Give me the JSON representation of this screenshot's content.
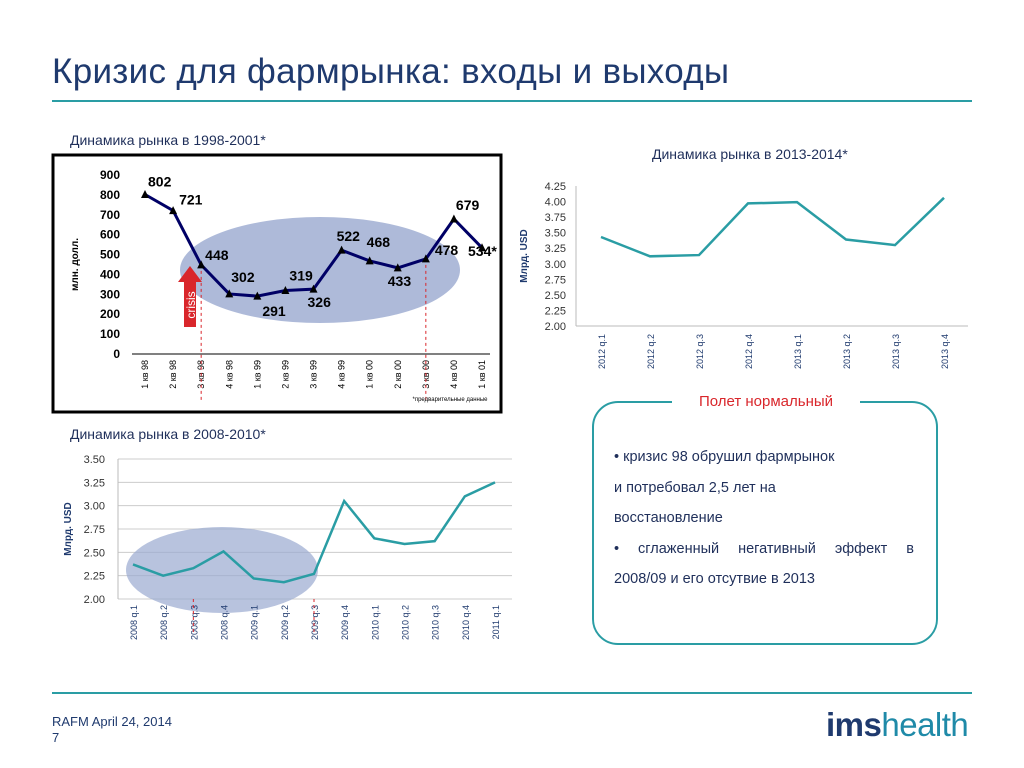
{
  "slide": {
    "title": "Кризис для фармрынка: входы и выходы",
    "footer_line1": "RAFM April 24, 2014",
    "footer_line2": "7",
    "logo_bold": "ims",
    "logo_light": "health"
  },
  "colors": {
    "accent": "#2a9da4",
    "navy": "#000066",
    "red": "#d9262b",
    "ellipse": "#9aa9d0",
    "title": "#1f3a6e"
  },
  "chart_data": [
    {
      "type": "line",
      "title": "Динамика рынка в 1998-2001*",
      "ylabel": "млн. долл.",
      "ylim": [
        0,
        900
      ],
      "yticks": [
        "0",
        "100",
        "200",
        "300",
        "400",
        "500",
        "600",
        "700",
        "800",
        "900"
      ],
      "categories": [
        "1 кв 98",
        "2 кв 98",
        "3 кв 98",
        "4 кв 98",
        "1 кв 99",
        "2 кв 99",
        "3 кв 99",
        "4 кв 99",
        "1 кв 00",
        "2 кв 00",
        "3 кв 00",
        "4 кв 00",
        "1 кв 01"
      ],
      "values": [
        802,
        721,
        448,
        302,
        291,
        319,
        326,
        522,
        468,
        433,
        478,
        679,
        534
      ],
      "data_labels": [
        "802",
        "721",
        "448",
        "302",
        "291",
        "319",
        "326",
        "522",
        "468",
        "433",
        "478",
        "679",
        "534*"
      ],
      "annotation_arrow": "crisis",
      "footnote": "*предварительные данные",
      "grid": false
    },
    {
      "type": "line",
      "title": "Динамика рынка в 2013-2014*",
      "ylabel": "Млрд. USD",
      "ylim": [
        2.0,
        4.25
      ],
      "yticks": [
        "2.00",
        "2.25",
        "2.50",
        "2.75",
        "3.00",
        "3.25",
        "3.50",
        "3.75",
        "4.00",
        "4.25"
      ],
      "categories": [
        "2012 q.1",
        "2012 q.2",
        "2012 q.3",
        "2012 q.4",
        "2013 q.1",
        "2013 q.2",
        "2013 q.3",
        "2013 q.4"
      ],
      "values": [
        3.43,
        3.12,
        3.14,
        3.97,
        3.99,
        3.39,
        3.3,
        4.06
      ],
      "grid": false
    },
    {
      "type": "line",
      "title": "Динамика рынка в 2008-2010*",
      "ylabel": "Млрд. USD",
      "ylim": [
        2.0,
        3.5
      ],
      "yticks": [
        "2.00",
        "2.25",
        "2.50",
        "2.75",
        "3.00",
        "3.25",
        "3.50"
      ],
      "categories": [
        "2008 q.1",
        "2008 q.2",
        "2008 q.3",
        "2008 q.4",
        "2009 q.1",
        "2009 q.2",
        "2009 q.3",
        "2009 q.4",
        "2010 q.1",
        "2010 q.2",
        "2010 q.3",
        "2010 q.4",
        "2011 q.1"
      ],
      "values": [
        2.37,
        2.25,
        2.33,
        2.51,
        2.22,
        2.18,
        2.27,
        3.05,
        2.65,
        2.59,
        2.62,
        3.1,
        3.25
      ],
      "grid": true
    }
  ],
  "callout": {
    "title": "Полет нормальный",
    "line1": "• кризис 98 обрушил фармрынок",
    "line2": "и потребовал 2,5 лет на",
    "line3": "восстановление",
    "line4": "• сглаженный негативный эффект в",
    "line5": "2008/09 и его отсутвие в 2013"
  }
}
